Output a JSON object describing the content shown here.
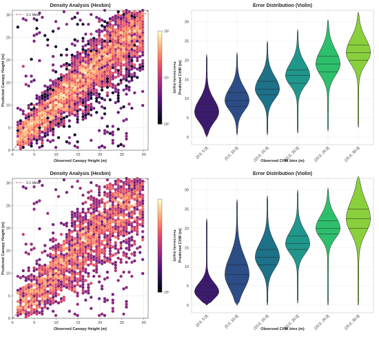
{
  "chart_data": [
    {
      "type": "hexbin",
      "title": "Density Analysis (Hexbin)",
      "xlabel": "Observed Canopy Height (m)",
      "ylabel": "Predicted Canopy Height (m)",
      "xlim": [
        0,
        31
      ],
      "ylim": [
        0,
        31
      ],
      "xticks": [
        0,
        5,
        10,
        15,
        20,
        25,
        30
      ],
      "yticks": [
        0,
        5,
        10,
        15,
        20,
        25,
        30
      ],
      "legend": {
        "label": "1:1 Ideal",
        "placement": "top-left",
        "color": "#c0392b"
      },
      "colorbar": {
        "label": "Point Density (log10)",
        "ticks": [
          "10⁰",
          "10¹",
          "10²"
        ],
        "colormap": "magma"
      },
      "density_band": {
        "slope": 0.9,
        "intercept": 1.2,
        "spread": 3.0
      },
      "grid": true
    },
    {
      "type": "violin",
      "title": "Error Distribution (Violin)",
      "xlabel": "Observed CHM bins (m)",
      "ylabel": "Predicted CHM (m)",
      "ylim": [
        -2,
        33
      ],
      "yticks": [
        0,
        5,
        10,
        15,
        20,
        25,
        30
      ],
      "categories": [
        "(0.0, 5.0]",
        "(5.0, 10.0]",
        "(10.0, 15.0]",
        "(15.0, 20.0]",
        "(20.0, 25.0]",
        "(25.0, 30.0]"
      ],
      "colors": [
        "#3c1b6e",
        "#2c4d86",
        "#1d7189",
        "#1f978a",
        "#2ebf6c",
        "#8ad03c"
      ],
      "violins": [
        {
          "min": 0.0,
          "max": 21.5,
          "q1": 5.0,
          "median": 6.5,
          "q3": 8.5
        },
        {
          "min": 0.5,
          "max": 22.0,
          "q1": 8.0,
          "median": 9.5,
          "q3": 11.5
        },
        {
          "min": 0.5,
          "max": 25.0,
          "q1": 11.0,
          "median": 12.5,
          "q3": 14.5
        },
        {
          "min": 1.0,
          "max": 28.0,
          "q1": 14.0,
          "median": 16.0,
          "q3": 17.5
        },
        {
          "min": 1.5,
          "max": 30.5,
          "q1": 17.0,
          "median": 19.0,
          "q3": 21.0
        },
        {
          "min": 2.5,
          "max": 32.5,
          "q1": 20.0,
          "median": 22.0,
          "q3": 24.0
        }
      ],
      "grid": true
    },
    {
      "type": "hexbin",
      "title": "Density Analysis (Hexbin)",
      "xlabel": "Observed Canopy Height (m)",
      "ylabel": "Predicted Canopy Height (m)",
      "xlim": [
        0,
        31
      ],
      "ylim": [
        0,
        31
      ],
      "xticks": [
        0,
        5,
        10,
        15,
        20,
        25,
        30
      ],
      "yticks": [
        0,
        5,
        10,
        15,
        20,
        25,
        30
      ],
      "legend": {
        "label": "1:1 Ideal",
        "placement": "top-left",
        "color": "#c0392b"
      },
      "colorbar": {
        "label": "Point Density (log10)",
        "ticks": [
          "10⁰"
        ],
        "colormap": "magma"
      },
      "density_band": {
        "slope": 0.93,
        "intercept": 0.8,
        "spread": 4.0
      },
      "grid": true
    },
    {
      "type": "violin",
      "title": "Error Distribution (Violin)",
      "xlabel": "Observed CHM bins (m)",
      "ylabel": "Predicted CHM (m)",
      "ylim": [
        -2,
        33
      ],
      "yticks": [
        0,
        5,
        10,
        15,
        20,
        25,
        30
      ],
      "categories": [
        "(0.0, 5.0]",
        "(5.0, 10.0]",
        "(10.0, 15.0]",
        "(15.0, 20.0]",
        "(20.0, 25.0]",
        "(25.0, 30.0]"
      ],
      "colors": [
        "#3c1b6e",
        "#2c4d86",
        "#1d7189",
        "#1f978a",
        "#2ebf6c",
        "#8ad03c"
      ],
      "violins": [
        {
          "min": 0.0,
          "max": 22.5,
          "q1": 2.5,
          "median": 3.5,
          "q3": 5.0
        },
        {
          "min": 0.0,
          "max": 27.5,
          "q1": 5.5,
          "median": 8.0,
          "q3": 10.5
        },
        {
          "min": 0.0,
          "max": 28.5,
          "q1": 10.5,
          "median": 12.5,
          "q3": 14.5
        },
        {
          "min": 0.5,
          "max": 30.0,
          "q1": 14.5,
          "median": 16.0,
          "q3": 18.0
        },
        {
          "min": 0.0,
          "max": 30.5,
          "q1": 18.5,
          "median": 20.0,
          "q3": 22.0
        },
        {
          "min": 0.0,
          "max": 33.5,
          "q1": 20.0,
          "median": 22.5,
          "q3": 25.0
        }
      ],
      "grid": true
    }
  ]
}
